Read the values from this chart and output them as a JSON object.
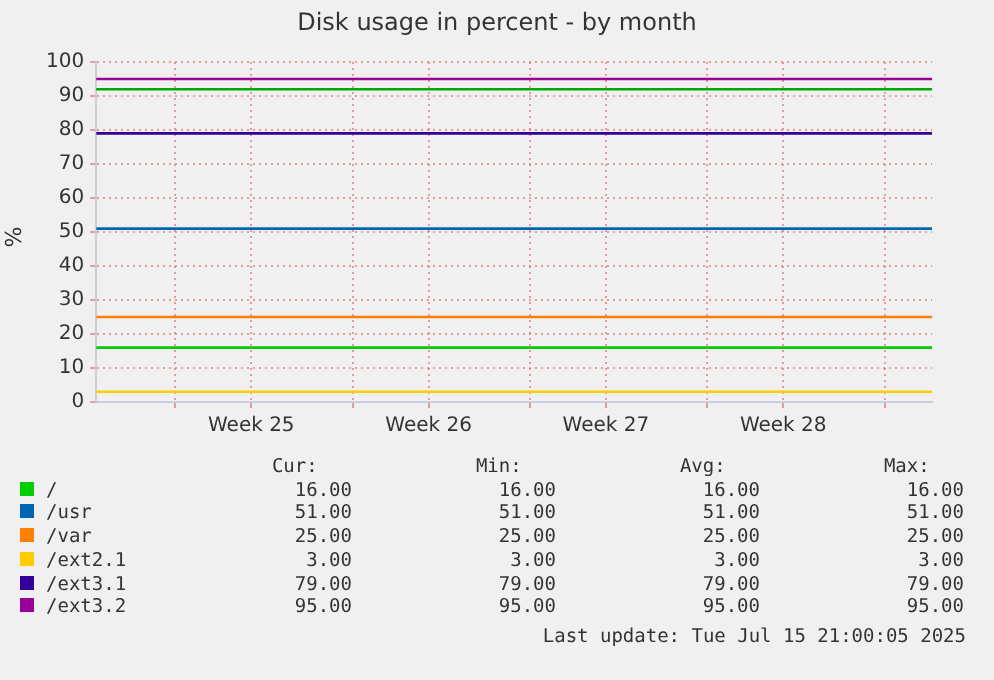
{
  "chart_data": {
    "type": "line",
    "title": "Disk usage in percent - by month",
    "ylabel": "%",
    "xlim": [
      "2025-06-12T21:00",
      "2025-07-15T21:00"
    ],
    "xticks": [
      {
        "value": "2025-06-16",
        "label": null
      },
      {
        "value": "2025-06-19",
        "label": "Week 25"
      },
      {
        "value": "2025-06-23",
        "label": null
      },
      {
        "value": "2025-06-26",
        "label": "Week 26"
      },
      {
        "value": "2025-06-30",
        "label": null
      },
      {
        "value": "2025-07-03",
        "label": "Week 27"
      },
      {
        "value": "2025-07-07",
        "label": null
      },
      {
        "value": "2025-07-10",
        "label": "Week 28"
      },
      {
        "value": "2025-07-14",
        "label": null
      }
    ],
    "ylim": [
      0,
      100
    ],
    "yticks": [
      0,
      10,
      20,
      30,
      40,
      50,
      60,
      70,
      80,
      90,
      100
    ],
    "grid": true,
    "legend": "bottom",
    "marker": "none",
    "line_style": "solid",
    "series": [
      {
        "name": "/",
        "color": "#00cc00",
        "x": [
          "2025-06-12T21:00",
          "2025-07-15T21:00"
        ],
        "values": [
          16,
          16
        ]
      },
      {
        "name": "/usr",
        "color": "#0066b3",
        "x": [
          "2025-06-12T21:00",
          "2025-07-15T21:00"
        ],
        "values": [
          51,
          51
        ]
      },
      {
        "name": "/var",
        "color": "#ff8000",
        "x": [
          "2025-06-12T21:00",
          "2025-07-15T21:00"
        ],
        "values": [
          25,
          25
        ]
      },
      {
        "name": "/ext2.1",
        "color": "#ffcc00",
        "x": [
          "2025-06-12T21:00",
          "2025-07-15T21:00"
        ],
        "values": [
          3,
          3
        ]
      },
      {
        "name": "/ext3.1",
        "color": "#330099",
        "x": [
          "2025-06-12T21:00",
          "2025-07-15T21:00"
        ],
        "values": [
          79,
          79
        ]
      },
      {
        "name": "/ext3.2",
        "color": "#990099",
        "x": [
          "2025-06-12T21:00",
          "2025-07-15T21:00"
        ],
        "values": [
          95,
          95
        ]
      }
    ],
    "ref_lines": [
      {
        "axis": "y",
        "value": 92,
        "color": "#00aa00"
      }
    ],
    "annotations": [
      "Cur:",
      "Min:",
      "Avg:",
      "Max:",
      "16.00",
      "16.00",
      "16.00",
      "16.00",
      "51.00",
      "51.00",
      "51.00",
      "51.00",
      "25.00",
      "25.00",
      "25.00",
      "25.00",
      "3.00",
      "3.00",
      "3.00",
      "3.00",
      "79.00",
      "79.00",
      "79.00",
      "79.00",
      "95.00",
      "95.00",
      "95.00",
      "95.00",
      "Last update: Tue Jul 15 21:00:05 2025"
    ]
  }
}
